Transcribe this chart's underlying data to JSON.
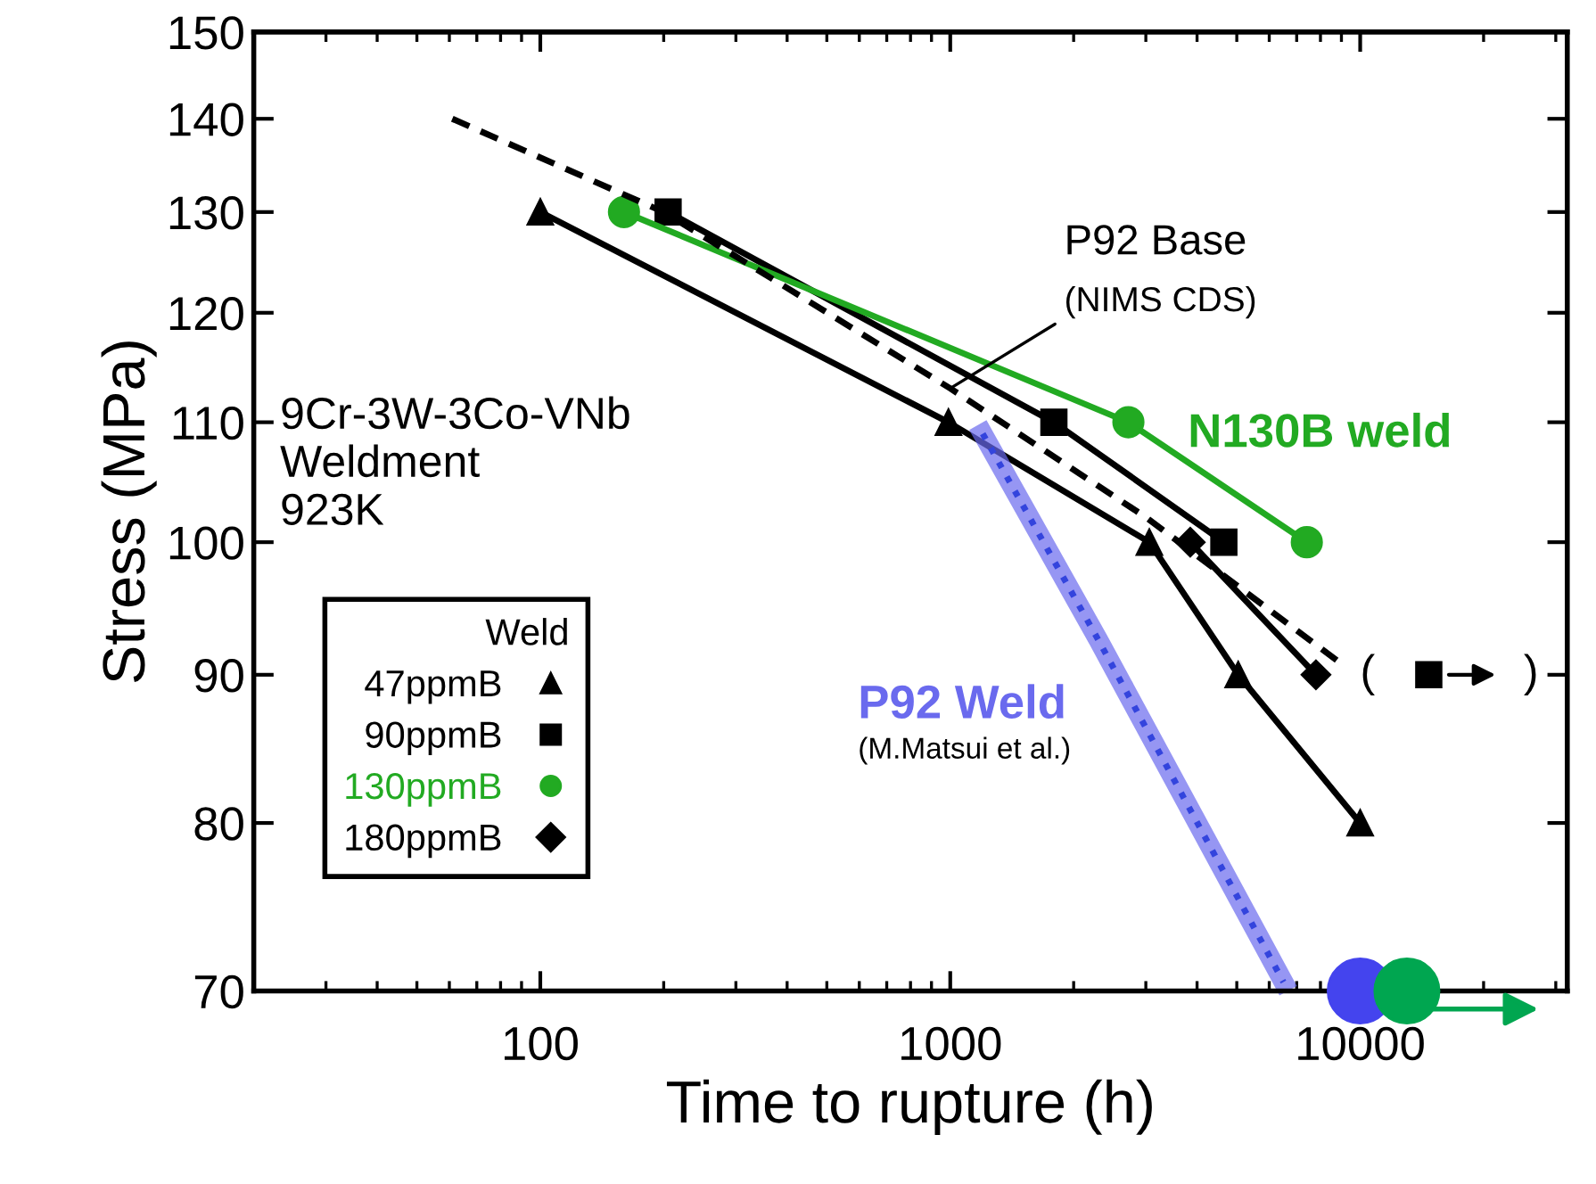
{
  "chart_data": {
    "type": "line",
    "xlabel": "Time to rupture (h)",
    "ylabel": "Stress (MPa)",
    "log": "xy",
    "xlim": [
      20,
      32000
    ],
    "xticks": [
      100,
      1000,
      10000
    ],
    "ylim": [
      70,
      150
    ],
    "yticks": [
      70,
      80,
      90,
      100,
      110,
      120,
      130,
      140,
      150
    ],
    "grid": false,
    "legend": "bottom left",
    "legend_title": "Weld",
    "series": [
      {
        "name": "47ppmB",
        "color": "#000000",
        "marker": "triangle",
        "x": [
          100,
          990,
          3060,
          5040,
          10000
        ],
        "values": [
          130,
          110,
          100,
          90,
          80
        ]
      },
      {
        "name": "90ppmB",
        "color": "#000000",
        "marker": "square",
        "x": [
          205,
          1790,
          4650
        ],
        "values": [
          130,
          110,
          100
        ]
      },
      {
        "name": "130ppmB",
        "color": "#22aa22",
        "marker": "circle",
        "x": [
          160,
          2720,
          7410
        ],
        "values": [
          130,
          110,
          100
        ]
      },
      {
        "name": "180ppmB",
        "color": "#000000",
        "marker": "diamond",
        "x": [
          3850,
          7800
        ],
        "values": [
          100,
          90
        ]
      },
      {
        "type": "scatter",
        "color": "#000000",
        "marker": "square",
        "x": [
          14700
        ],
        "values": [
          90
        ]
      },
      {
        "color": "#000000",
        "marker": "none",
        "line_style": "dashed",
        "x": [
          61,
          200,
          1000,
          3000,
          8800
        ],
        "values": [
          140,
          130,
          113,
          102,
          91
        ]
      },
      {
        "name": "P92 Weld",
        "color": "#6a6aee",
        "marker": "none",
        "x": [
          1200,
          2300,
          6500
        ],
        "values": [
          109,
          92.5,
          70.5
        ]
      },
      {
        "type": "scatter",
        "color": "#4444ee",
        "marker": "circle",
        "x": [
          10000
        ],
        "values": [
          70
        ]
      },
      {
        "type": "scatter",
        "color": "#00a650",
        "marker": "circle",
        "x": [
          13000
        ],
        "values": [
          70
        ]
      }
    ],
    "annotations": [
      "P92 Base",
      {
        "text": "(NIMS CDS)",
        "x": 1000,
        "y": 113
      },
      {
        "text": "N130B weld",
        "x": 2720,
        "y": 110
      },
      "(M.Matsui et al.)",
      "9Cr-3W-3Co-VNb\nWeldment\n923K",
      {
        "text": "(            )",
        "x": 16500,
        "y": 90
      }
    ]
  }
}
